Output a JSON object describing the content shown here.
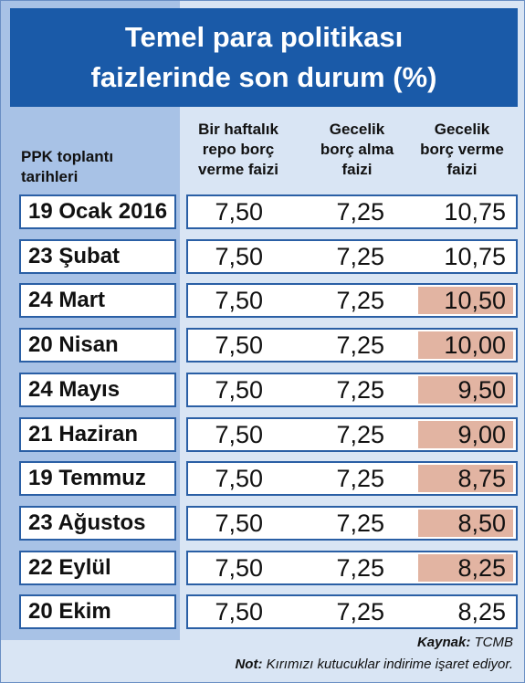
{
  "header": {
    "title_lines": [
      "Temel para politikası",
      "faizlerinde son durum (%)"
    ]
  },
  "table": {
    "columns": [
      [
        "PPK toplantı",
        "tarihleri"
      ],
      [
        "Bir haftalık",
        "repo borç",
        "verme faizi"
      ],
      [
        "Gecelik",
        "borç alma",
        "faizi"
      ],
      [
        "Gecelik",
        "borç verme",
        "faizi"
      ]
    ],
    "rows": [
      {
        "date": "19 Ocak 2016",
        "cells": [
          "7,50",
          "7,25",
          "10,75"
        ],
        "highlight": false
      },
      {
        "date": "23 Şubat",
        "cells": [
          "7,50",
          "7,25",
          "10,75"
        ],
        "highlight": false
      },
      {
        "date": "24 Mart",
        "cells": [
          "7,50",
          "7,25",
          "10,50"
        ],
        "highlight": true
      },
      {
        "date": "20 Nisan",
        "cells": [
          "7,50",
          "7,25",
          "10,00"
        ],
        "highlight": true
      },
      {
        "date": "24 Mayıs",
        "cells": [
          "7,50",
          "7,25",
          "9,50"
        ],
        "highlight": true
      },
      {
        "date": "21 Haziran",
        "cells": [
          "7,50",
          "7,25",
          "9,00"
        ],
        "highlight": true
      },
      {
        "date": "19 Temmuz",
        "cells": [
          "7,50",
          "7,25",
          "8,75"
        ],
        "highlight": true
      },
      {
        "date": "23 Ağustos",
        "cells": [
          "7,50",
          "7,25",
          "8,50"
        ],
        "highlight": true
      },
      {
        "date": "22 Eylül",
        "cells": [
          "7,50",
          "7,25",
          "8,25"
        ],
        "highlight": true
      },
      {
        "date": "20 Ekim",
        "cells": [
          "7,50",
          "7,25",
          "8,25"
        ],
        "highlight": false
      }
    ]
  },
  "footer": {
    "source_label": "Kaynak:",
    "source": "TCMB",
    "note_label": "Not:",
    "note": "Kırımızı kutucuklar indirime işaret ediyor."
  }
}
